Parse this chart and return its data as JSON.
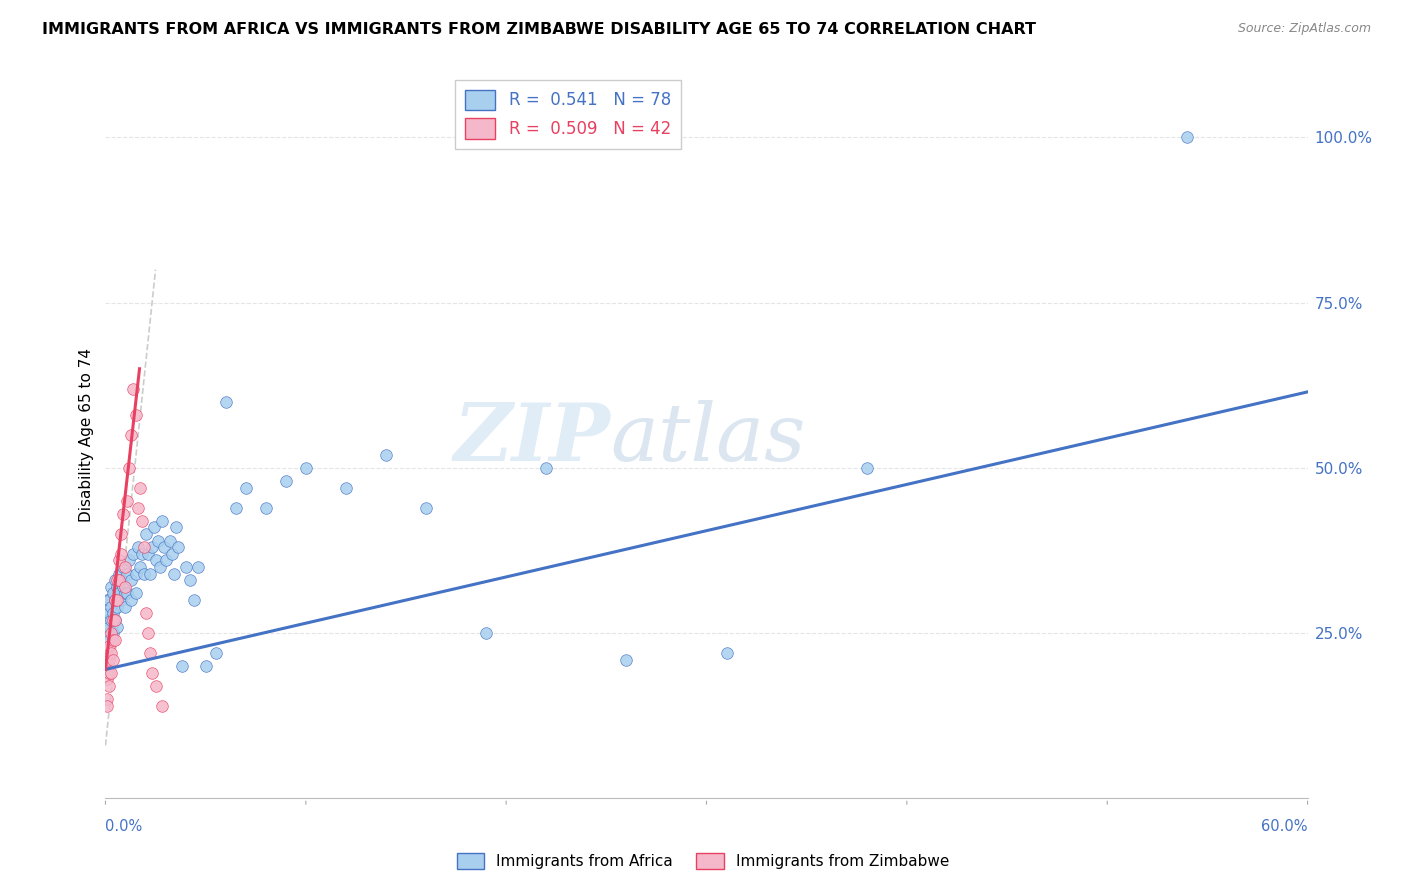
{
  "title": "IMMIGRANTS FROM AFRICA VS IMMIGRANTS FROM ZIMBABWE DISABILITY AGE 65 TO 74 CORRELATION CHART",
  "source": "Source: ZipAtlas.com",
  "ylabel": "Disability Age 65 to 74",
  "xmin": 0.0,
  "xmax": 0.6,
  "ymin": 0.0,
  "ymax": 1.1,
  "yticks": [
    0.25,
    0.5,
    0.75,
    1.0
  ],
  "ytick_labels": [
    "25.0%",
    "50.0%",
    "75.0%",
    "100.0%"
  ],
  "color_africa": "#A8CFEE",
  "color_zimbabwe": "#F5B8CB",
  "color_trend_africa": "#4472C4",
  "color_trend_zimbabwe": "#E84060",
  "color_trend_gray": "#CCCCCC",
  "africa_x": [
    0.001,
    0.001,
    0.001,
    0.002,
    0.002,
    0.002,
    0.002,
    0.003,
    0.003,
    0.003,
    0.004,
    0.004,
    0.004,
    0.005,
    0.005,
    0.005,
    0.006,
    0.006,
    0.006,
    0.007,
    0.007,
    0.008,
    0.008,
    0.009,
    0.009,
    0.01,
    0.01,
    0.011,
    0.011,
    0.012,
    0.013,
    0.013,
    0.014,
    0.015,
    0.015,
    0.016,
    0.017,
    0.018,
    0.019,
    0.02,
    0.021,
    0.022,
    0.023,
    0.024,
    0.025,
    0.026,
    0.027,
    0.028,
    0.029,
    0.03,
    0.032,
    0.033,
    0.034,
    0.035,
    0.036,
    0.038,
    0.04,
    0.042,
    0.044,
    0.046,
    0.05,
    0.055,
    0.06,
    0.065,
    0.07,
    0.08,
    0.09,
    0.1,
    0.12,
    0.14,
    0.16,
    0.19,
    0.22,
    0.26,
    0.31,
    0.38,
    0.54
  ],
  "africa_y": [
    0.3,
    0.27,
    0.25,
    0.3,
    0.28,
    0.26,
    0.24,
    0.32,
    0.29,
    0.27,
    0.31,
    0.28,
    0.25,
    0.33,
    0.3,
    0.27,
    0.32,
    0.29,
    0.26,
    0.34,
    0.31,
    0.33,
    0.3,
    0.35,
    0.32,
    0.31,
    0.29,
    0.34,
    0.31,
    0.36,
    0.33,
    0.3,
    0.37,
    0.34,
    0.31,
    0.38,
    0.35,
    0.37,
    0.34,
    0.4,
    0.37,
    0.34,
    0.38,
    0.41,
    0.36,
    0.39,
    0.35,
    0.42,
    0.38,
    0.36,
    0.39,
    0.37,
    0.34,
    0.41,
    0.38,
    0.2,
    0.35,
    0.33,
    0.3,
    0.35,
    0.2,
    0.22,
    0.6,
    0.44,
    0.47,
    0.44,
    0.48,
    0.5,
    0.47,
    0.52,
    0.44,
    0.25,
    0.5,
    0.21,
    0.22,
    0.5,
    1.0
  ],
  "zimbabwe_x": [
    0.001,
    0.001,
    0.001,
    0.001,
    0.001,
    0.002,
    0.002,
    0.002,
    0.002,
    0.003,
    0.003,
    0.003,
    0.004,
    0.004,
    0.004,
    0.005,
    0.005,
    0.005,
    0.006,
    0.006,
    0.007,
    0.007,
    0.008,
    0.008,
    0.009,
    0.01,
    0.01,
    0.011,
    0.012,
    0.013,
    0.014,
    0.015,
    0.016,
    0.017,
    0.018,
    0.019,
    0.02,
    0.021,
    0.022,
    0.023,
    0.025,
    0.028
  ],
  "zimbabwe_y": [
    0.22,
    0.2,
    0.18,
    0.15,
    0.14,
    0.23,
    0.21,
    0.19,
    0.17,
    0.25,
    0.22,
    0.19,
    0.27,
    0.24,
    0.21,
    0.3,
    0.27,
    0.24,
    0.33,
    0.3,
    0.36,
    0.33,
    0.4,
    0.37,
    0.43,
    0.35,
    0.32,
    0.45,
    0.5,
    0.55,
    0.62,
    0.58,
    0.44,
    0.47,
    0.42,
    0.38,
    0.28,
    0.25,
    0.22,
    0.19,
    0.17,
    0.14
  ],
  "grid_color": "#E5E5E5",
  "background_color": "#FFFFFF",
  "watermark_zip": "ZIP",
  "watermark_atlas": "atlas",
  "marker_size": 70,
  "africa_trend_x0": 0.0,
  "africa_trend_y0": 0.195,
  "africa_trend_x1": 0.6,
  "africa_trend_y1": 0.615,
  "zimbabwe_trend_x0": 0.0,
  "zimbabwe_trend_y0": 0.195,
  "zimbabwe_trend_x1": 0.017,
  "zimbabwe_trend_y1": 0.65,
  "gray_line_x0": 0.0,
  "gray_line_y0": 0.08,
  "gray_line_x1": 0.025,
  "gray_line_y1": 0.8
}
